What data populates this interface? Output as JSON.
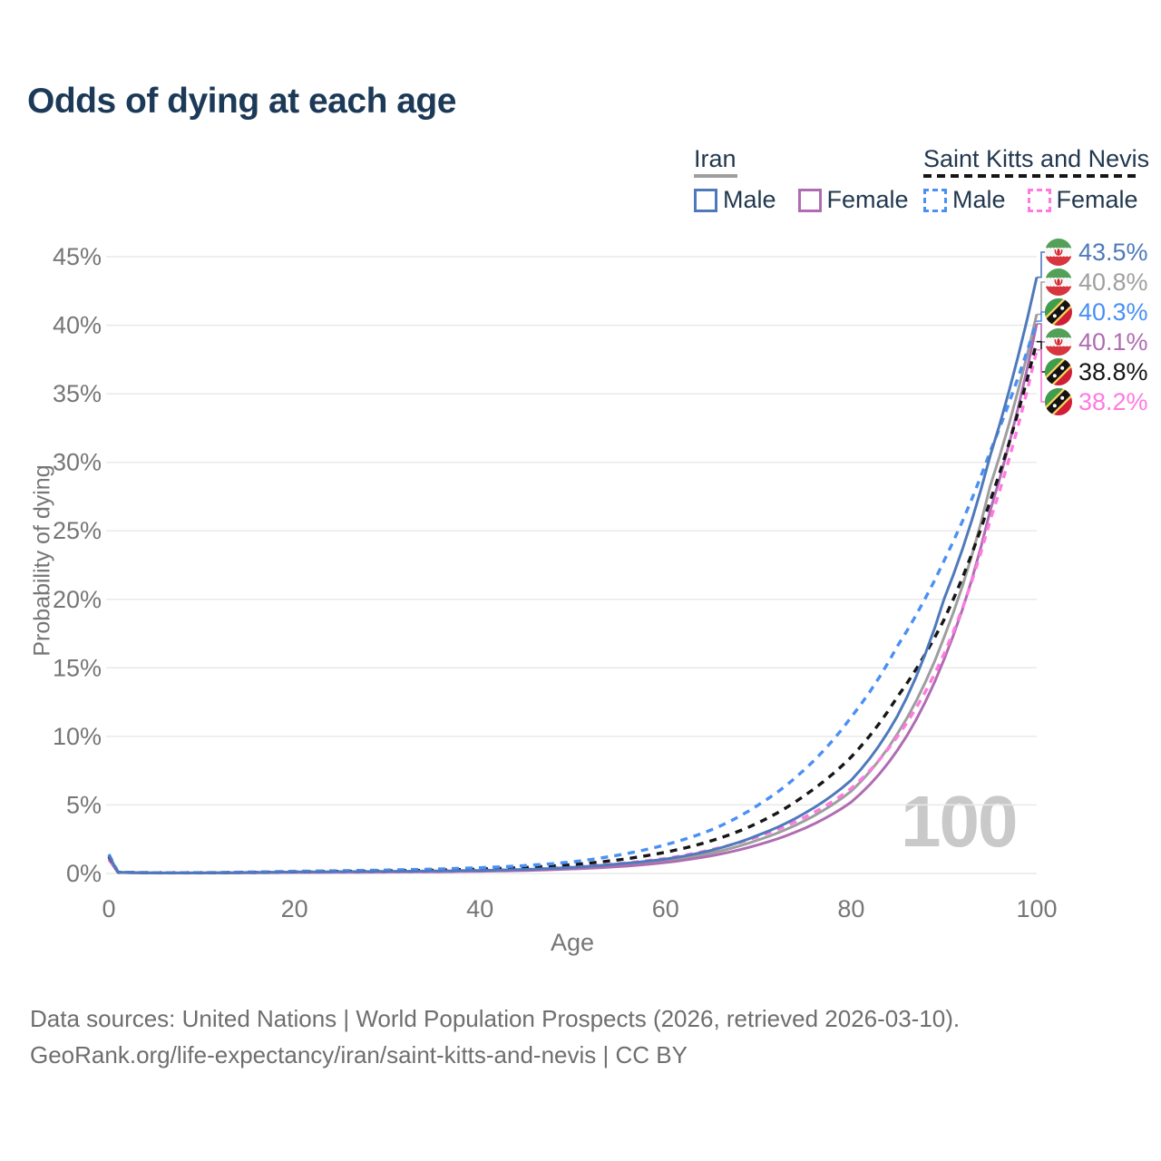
{
  "title": "Odds of dying at each age",
  "legend": {
    "groups": [
      {
        "label": "Iran",
        "line_style": "solid",
        "underline_color": "#9e9e9e",
        "items": [
          {
            "label": "Male",
            "color": "#4e79bb"
          },
          {
            "label": "Female",
            "color": "#b06cb2"
          }
        ]
      },
      {
        "label": "Saint Kitts and Nevis",
        "line_style": "dashed",
        "underline_color": "#151515",
        "items": [
          {
            "label": "Male",
            "color": "#4a90f4"
          },
          {
            "label": "Female",
            "color": "#ff7ae0"
          }
        ]
      }
    ]
  },
  "chart_data": {
    "type": "line",
    "title": "Odds of dying at each age",
    "xlabel": "Age",
    "ylabel": "Probability of dying",
    "xlim": [
      0,
      100
    ],
    "ylim": [
      0,
      45
    ],
    "grid": "horizontal",
    "x_ticks": [
      0,
      20,
      40,
      60,
      80,
      100
    ],
    "y_ticks": [
      {
        "value": 0,
        "label": "0%"
      },
      {
        "value": 5,
        "label": "5%"
      },
      {
        "value": 10,
        "label": "10%"
      },
      {
        "value": 15,
        "label": "15%"
      },
      {
        "value": 20,
        "label": "20%"
      },
      {
        "value": 25,
        "label": "25%"
      },
      {
        "value": 30,
        "label": "30%"
      },
      {
        "value": 35,
        "label": "35%"
      },
      {
        "value": 40,
        "label": "40%"
      },
      {
        "value": 45,
        "label": "45%"
      }
    ],
    "ages": [
      0,
      1,
      5,
      10,
      15,
      20,
      25,
      30,
      35,
      40,
      45,
      50,
      55,
      60,
      65,
      70,
      75,
      80,
      85,
      90,
      95,
      100
    ],
    "series": [
      {
        "name": "Iran Both sexes",
        "color": "#9e9e9e",
        "dash": false,
        "values": [
          1.15,
          0.08,
          0.04,
          0.04,
          0.06,
          0.09,
          0.11,
          0.13,
          0.15,
          0.19,
          0.26,
          0.39,
          0.6,
          0.92,
          1.5,
          2.45,
          3.85,
          6.0,
          10.2,
          17.2,
          28.3,
          40.8
        ],
        "end_label": "40.8%"
      },
      {
        "name": "Iran Female",
        "color": "#b06cb2",
        "dash": false,
        "values": [
          1.0,
          0.07,
          0.03,
          0.03,
          0.05,
          0.07,
          0.08,
          0.1,
          0.12,
          0.16,
          0.22,
          0.33,
          0.5,
          0.8,
          1.3,
          2.1,
          3.3,
          5.2,
          9.0,
          15.6,
          26.5,
          40.1
        ],
        "end_label": "40.1%"
      },
      {
        "name": "Saint Kitts and Nevis Female",
        "color": "#ff7ae0",
        "dash": true,
        "values": [
          1.1,
          0.08,
          0.04,
          0.04,
          0.06,
          0.09,
          0.11,
          0.13,
          0.17,
          0.23,
          0.32,
          0.47,
          0.72,
          1.1,
          1.75,
          2.7,
          4.1,
          6.2,
          10.0,
          16.0,
          25.8,
          38.2
        ],
        "end_label": "38.2%"
      },
      {
        "name": "Saint Kitts and Nevis Both sexes",
        "color": "#161616",
        "dash": true,
        "values": [
          1.25,
          0.09,
          0.05,
          0.05,
          0.08,
          0.12,
          0.15,
          0.19,
          0.24,
          0.32,
          0.44,
          0.65,
          1.0,
          1.55,
          2.4,
          3.7,
          5.7,
          8.5,
          12.9,
          18.5,
          27.2,
          38.8
        ],
        "end_label": "38.8%"
      },
      {
        "name": "Saint Kitts and Nevis Male",
        "color": "#4a90f4",
        "dash": true,
        "values": [
          1.4,
          0.1,
          0.05,
          0.06,
          0.1,
          0.16,
          0.2,
          0.25,
          0.32,
          0.42,
          0.58,
          0.85,
          1.35,
          2.1,
          3.2,
          5.0,
          7.6,
          11.4,
          16.6,
          22.8,
          30.8,
          40.3
        ],
        "end_label": "40.3%"
      },
      {
        "name": "Iran Male",
        "color": "#4e79bb",
        "dash": false,
        "values": [
          1.3,
          0.09,
          0.04,
          0.04,
          0.07,
          0.11,
          0.13,
          0.15,
          0.18,
          0.22,
          0.3,
          0.45,
          0.7,
          1.05,
          1.7,
          2.8,
          4.4,
          6.8,
          11.5,
          20.0,
          30.5,
          43.5
        ],
        "end_label": "43.5%"
      }
    ],
    "end_labels": [
      {
        "text": "43.5%",
        "series": "Iran Male",
        "flag": "iran",
        "flag_icon": "iran-flag-icon",
        "color": "#4e79bb"
      },
      {
        "text": "40.8%",
        "series": "Iran Both sexes",
        "flag": "iran",
        "flag_icon": "iran-flag-icon",
        "color": "#a0a0a0"
      },
      {
        "text": "40.3%",
        "series": "Saint Kitts and Nevis Male",
        "flag": "skn",
        "flag_icon": "saint-kitts-and-nevis-flag-icon",
        "color": "#4a90f4"
      },
      {
        "text": "40.1%",
        "series": "Iran Female",
        "flag": "iran",
        "flag_icon": "iran-flag-icon",
        "color": "#b06cb2"
      },
      {
        "text": "38.8%",
        "series": "Saint Kitts and Nevis Both sexes",
        "flag": "skn",
        "flag_icon": "saint-kitts-and-nevis-flag-icon",
        "color": "#161616"
      },
      {
        "text": "38.2%",
        "series": "Saint Kitts and Nevis Female",
        "flag": "skn",
        "flag_icon": "saint-kitts-and-nevis-flag-icon",
        "color": "#ff7ae0"
      }
    ],
    "watermark": "100",
    "legend_position": "top-right"
  },
  "footer": {
    "line1": "Data sources: United Nations | World Population Prospects (2026, retrieved 2026-03-10).",
    "line2": "GeoRank.org/life-expectancy/iran/saint-kitts-and-nevis | CC BY"
  }
}
